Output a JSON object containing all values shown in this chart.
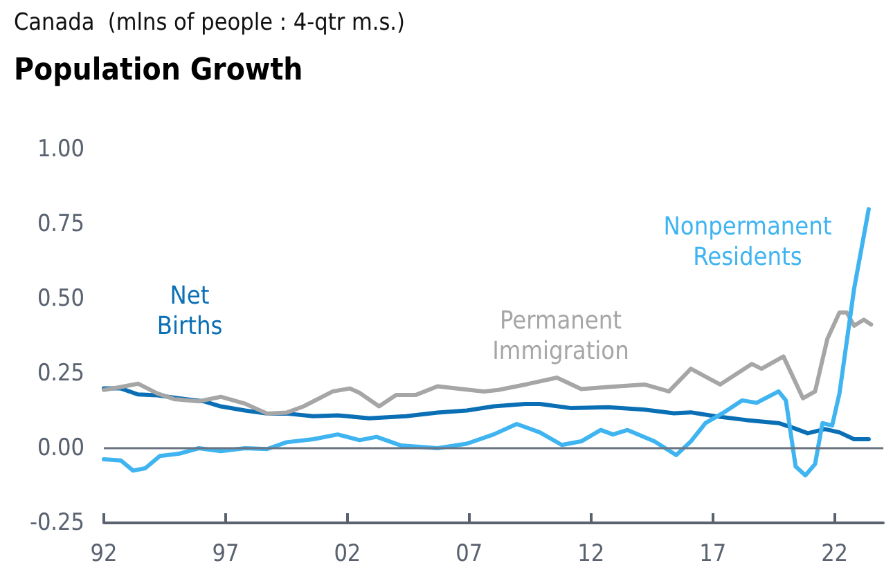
{
  "chart_data": {
    "type": "line",
    "title": "Population Growth",
    "subtitle": "Canada  (mlns of people : 4-qtr m.s.)",
    "xlim": [
      1992,
      2024
    ],
    "xticks": [
      {
        "value": 1992,
        "label": "92"
      },
      {
        "value": 1997,
        "label": "97"
      },
      {
        "value": 2002,
        "label": "02"
      },
      {
        "value": 2007,
        "label": "07"
      },
      {
        "value": 2012,
        "label": "12"
      },
      {
        "value": 2017,
        "label": "17"
      },
      {
        "value": 2022,
        "label": "22"
      }
    ],
    "ylim": [
      -0.25,
      1.0
    ],
    "yticks": [
      {
        "value": -0.25,
        "label": "-0.25"
      },
      {
        "value": 0,
        "label": "0.00"
      },
      {
        "value": 0.25,
        "label": "0.25"
      },
      {
        "value": 0.5,
        "label": "0.50"
      },
      {
        "value": 0.75,
        "label": "0.75"
      },
      {
        "value": 1.0,
        "label": "1.00"
      }
    ],
    "grid": false,
    "marker": "none",
    "line_style": "solid",
    "ref_lines": [
      {
        "axis": "y",
        "value": 0,
        "color": "#6b7280"
      }
    ],
    "series": [
      {
        "name": "Net\nBirths",
        "color": "#0a6fb5",
        "x": [
          1992.0,
          1992.7,
          1993.4,
          1994.2,
          1995.1,
          1996.1,
          1996.8,
          1997.8,
          1998.7,
          1999.5,
          2000.6,
          2001.6,
          2002.9,
          2004.4,
          2005.7,
          2006.9,
          2008.0,
          2009.3,
          2009.9,
          2011.2,
          2012.7,
          2014.2,
          2015.4,
          2016.1,
          2017.1,
          2018.4,
          2019.7,
          2020.3,
          2020.9,
          2021.6,
          2022.2,
          2022.8,
          2023.4
        ],
        "values": [
          0.2,
          0.2,
          0.18,
          0.177,
          0.167,
          0.157,
          0.14,
          0.126,
          0.116,
          0.116,
          0.107,
          0.11,
          0.1,
          0.107,
          0.119,
          0.126,
          0.14,
          0.148,
          0.148,
          0.134,
          0.137,
          0.129,
          0.117,
          0.12,
          0.107,
          0.094,
          0.084,
          0.068,
          0.05,
          0.064,
          0.053,
          0.03,
          0.03
        ]
      },
      {
        "name": "Permanent\nImmigration",
        "color": "#a6a6a6",
        "x": [
          1992.0,
          1992.7,
          1993.4,
          1994.2,
          1994.9,
          1995.9,
          1996.8,
          1997.8,
          1998.7,
          1999.5,
          2000.2,
          2001.4,
          2002.1,
          2002.5,
          2003.3,
          2004.0,
          2004.8,
          2005.7,
          2006.7,
          2007.6,
          2008.2,
          2009.3,
          2010.6,
          2011.6,
          2012.7,
          2014.2,
          2015.2,
          2016.1,
          2017.3,
          2018.6,
          2019.0,
          2019.9,
          2020.7,
          2021.2,
          2021.7,
          2022.2,
          2022.5,
          2022.8,
          2023.2,
          2023.5
        ],
        "values": [
          0.195,
          0.205,
          0.216,
          0.183,
          0.164,
          0.157,
          0.172,
          0.149,
          0.116,
          0.119,
          0.14,
          0.19,
          0.2,
          0.185,
          0.14,
          0.178,
          0.178,
          0.207,
          0.198,
          0.19,
          0.195,
          0.213,
          0.236,
          0.198,
          0.205,
          0.213,
          0.19,
          0.266,
          0.213,
          0.282,
          0.266,
          0.307,
          0.167,
          0.19,
          0.365,
          0.454,
          0.454,
          0.41,
          0.43,
          0.414
        ]
      },
      {
        "name": "Nonpermanent\nResidents",
        "color": "#3fb4f0",
        "x": [
          1992.0,
          1992.7,
          1993.2,
          1993.7,
          1994.3,
          1995.1,
          1995.9,
          1996.8,
          1997.8,
          1998.7,
          1999.5,
          2000.6,
          2001.6,
          2002.5,
          2003.2,
          2004.2,
          2005.7,
          2006.9,
          2008.0,
          2008.95,
          2009.9,
          2010.8,
          2011.6,
          2012.4,
          2012.9,
          2013.5,
          2014.6,
          2015.5,
          2016.1,
          2016.7,
          2017.5,
          2018.2,
          2018.8,
          2019.7,
          2020.0,
          2020.4,
          2020.8,
          2021.2,
          2021.5,
          2021.9,
          2022.2,
          2022.8,
          2023.4
        ],
        "values": [
          -0.037,
          -0.041,
          -0.075,
          -0.067,
          -0.026,
          -0.018,
          0.0,
          -0.01,
          0.0,
          -0.003,
          0.02,
          0.03,
          0.046,
          0.027,
          0.038,
          0.009,
          0.0,
          0.015,
          0.046,
          0.081,
          0.053,
          0.011,
          0.023,
          0.061,
          0.046,
          0.061,
          0.023,
          -0.023,
          0.023,
          0.084,
          0.122,
          0.16,
          0.152,
          0.19,
          0.16,
          -0.061,
          -0.091,
          -0.053,
          0.084,
          0.076,
          0.183,
          0.533,
          0.8
        ]
      }
    ]
  }
}
